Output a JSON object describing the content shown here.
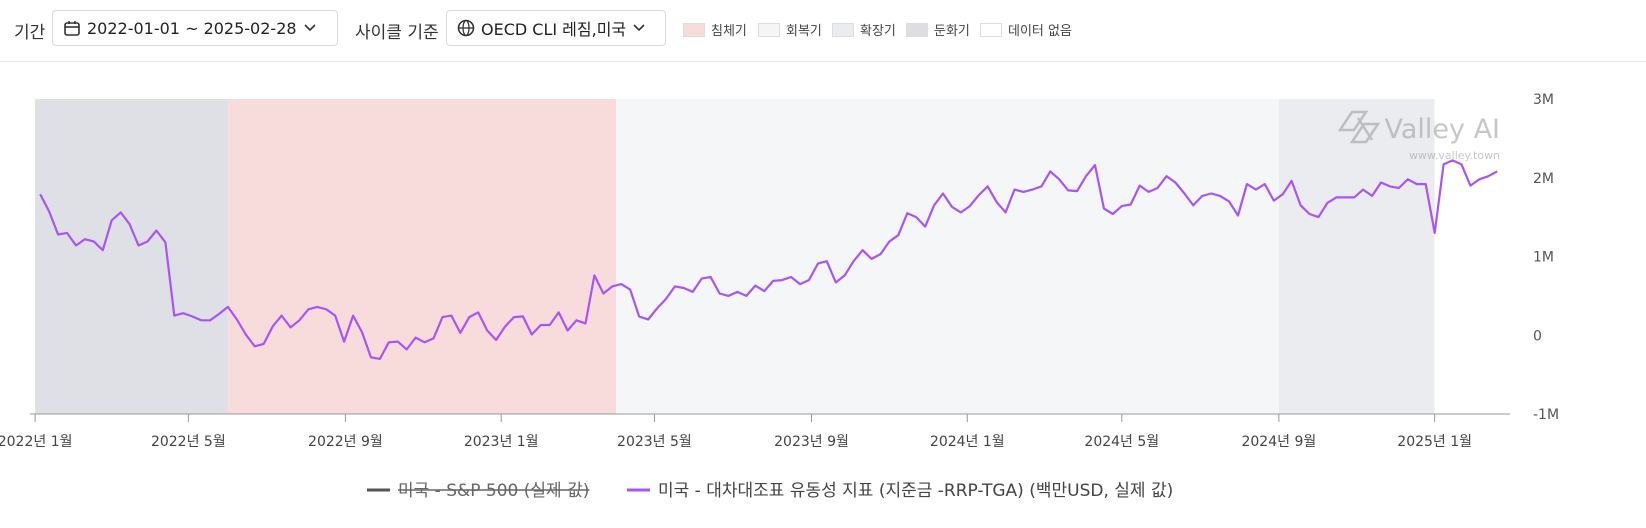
{
  "toolbar": {
    "period_label": "기간",
    "period": "2022-01-01 ~ 2025-02-28",
    "cycle_label": "사이클 기준",
    "cycle": "OECD CLI 레짐,미국",
    "regime_legend": [
      {
        "name": "침체기",
        "color": "#f8dcdc"
      },
      {
        "name": "회복기",
        "color": "#f4f5f7"
      },
      {
        "name": "확장기",
        "color": "#ebecef"
      },
      {
        "name": "둔화기",
        "color": "#dcdee4"
      },
      {
        "name": "데이터 없음",
        "color": "#ffffff"
      }
    ]
  },
  "chart_data": {
    "type": "line",
    "watermark": "Valley AI",
    "watermark_url": "www.valley.town",
    "x": [
      "2022-01-05",
      "2022-01-12",
      "2022-01-19",
      "2022-01-26",
      "2022-02-02",
      "2022-02-09",
      "2022-02-16",
      "2022-02-23",
      "2022-03-02",
      "2022-03-09",
      "2022-03-16",
      "2022-03-23",
      "2022-03-30",
      "2022-04-06",
      "2022-04-13",
      "2022-04-20",
      "2022-04-27",
      "2022-05-04",
      "2022-05-11",
      "2022-05-18",
      "2022-05-25",
      "2022-06-01",
      "2022-06-08",
      "2022-06-15",
      "2022-06-22",
      "2022-06-29",
      "2022-07-06",
      "2022-07-13",
      "2022-07-20",
      "2022-07-27",
      "2022-08-03",
      "2022-08-10",
      "2022-08-17",
      "2022-08-24",
      "2022-08-31",
      "2022-09-07",
      "2022-09-14",
      "2022-09-21",
      "2022-09-28",
      "2022-10-05",
      "2022-10-12",
      "2022-10-19",
      "2022-10-26",
      "2022-11-02",
      "2022-11-09",
      "2022-11-16",
      "2022-11-23",
      "2022-11-30",
      "2022-12-07",
      "2022-12-14",
      "2022-12-21",
      "2022-12-28",
      "2023-01-04",
      "2023-01-11",
      "2023-01-18",
      "2023-01-25",
      "2023-02-01",
      "2023-02-08",
      "2023-02-15",
      "2023-02-22",
      "2023-03-01",
      "2023-03-08",
      "2023-03-15",
      "2023-03-22",
      "2023-03-29",
      "2023-04-05",
      "2023-04-12",
      "2023-04-19",
      "2023-04-26",
      "2023-05-03",
      "2023-05-10",
      "2023-05-17",
      "2023-05-24",
      "2023-05-31",
      "2023-06-07",
      "2023-06-14",
      "2023-06-21",
      "2023-06-28",
      "2023-07-05",
      "2023-07-12",
      "2023-07-19",
      "2023-07-26",
      "2023-08-02",
      "2023-08-09",
      "2023-08-16",
      "2023-08-23",
      "2023-08-30",
      "2023-09-06",
      "2023-09-13",
      "2023-09-20",
      "2023-09-27",
      "2023-10-04",
      "2023-10-11",
      "2023-10-18",
      "2023-10-25",
      "2023-11-01",
      "2023-11-08",
      "2023-11-15",
      "2023-11-22",
      "2023-11-29",
      "2023-12-06",
      "2023-12-13",
      "2023-12-20",
      "2023-12-27",
      "2024-01-03",
      "2024-01-10",
      "2024-01-17",
      "2024-01-24",
      "2024-01-31",
      "2024-02-07",
      "2024-02-14",
      "2024-02-21",
      "2024-02-28",
      "2024-03-06",
      "2024-03-13",
      "2024-03-20",
      "2024-03-27",
      "2024-04-03",
      "2024-04-10",
      "2024-04-17",
      "2024-04-24",
      "2024-05-01",
      "2024-05-08",
      "2024-05-15",
      "2024-05-22",
      "2024-05-29",
      "2024-06-05",
      "2024-06-12",
      "2024-06-19",
      "2024-06-26",
      "2024-07-03",
      "2024-07-10",
      "2024-07-17",
      "2024-07-24",
      "2024-07-31",
      "2024-08-07",
      "2024-08-14",
      "2024-08-21",
      "2024-08-28",
      "2024-09-04",
      "2024-09-11",
      "2024-09-18",
      "2024-09-25",
      "2024-10-02",
      "2024-10-09",
      "2024-10-16",
      "2024-10-23",
      "2024-10-30",
      "2024-11-06",
      "2024-11-13",
      "2024-11-20",
      "2024-11-27",
      "2024-12-04",
      "2024-12-11",
      "2024-12-18",
      "2024-12-25",
      "2025-01-01",
      "2025-01-08",
      "2025-01-15",
      "2025-01-22",
      "2025-01-29",
      "2025-02-05",
      "2025-02-12",
      "2025-02-19"
    ],
    "xlim": [
      "2021-12-28",
      "2025-03-01"
    ],
    "xticks": [
      {
        "value": "2022-01-01",
        "label": "2022년 1월"
      },
      {
        "value": "2022-05-01",
        "label": "2022년 5월"
      },
      {
        "value": "2022-09-01",
        "label": "2022년 9월"
      },
      {
        "value": "2023-01-01",
        "label": "2023년 1월"
      },
      {
        "value": "2023-05-01",
        "label": "2023년 5월"
      },
      {
        "value": "2023-09-01",
        "label": "2023년 9월"
      },
      {
        "value": "2024-01-01",
        "label": "2024년 1월"
      },
      {
        "value": "2024-05-01",
        "label": "2024년 5월"
      },
      {
        "value": "2024-09-01",
        "label": "2024년 9월"
      },
      {
        "value": "2025-01-01",
        "label": "2025년 1월"
      }
    ],
    "ylim": [
      -1000000,
      3000000
    ],
    "yticks": [
      {
        "value": -1000000,
        "label": "-1M"
      },
      0,
      {
        "value": 1000000,
        "label": "1M"
      },
      {
        "value": 2000000,
        "label": "2M"
      },
      {
        "value": 3000000,
        "label": "3M"
      }
    ],
    "regimes": [
      {
        "start": "2022-01-01",
        "end": "2022-06-01",
        "color": "#dfe0e6"
      },
      {
        "start": "2022-06-01",
        "end": "2023-04-01",
        "color": "#f8dcdc"
      },
      {
        "start": "2023-04-01",
        "end": "2024-09-01",
        "color": "#f5f6f8"
      },
      {
        "start": "2024-09-01",
        "end": "2025-01-01",
        "color": "#ebecef"
      }
    ],
    "series": [
      {
        "name": "미국 - S&P 500 (실제 값)",
        "color": "#555555",
        "hidden": true
      },
      {
        "name": "미국 - 대차대조표 유동성 지표 (지준금 -RRP-TGA) (백만USD, 실제 값)",
        "color": "#a855f7",
        "values": [
          1790000,
          1570000,
          1280000,
          1300000,
          1140000,
          1220000,
          1190000,
          1080000,
          1460000,
          1560000,
          1410000,
          1140000,
          1190000,
          1330000,
          1180000,
          250000,
          280000,
          240000,
          190000,
          190000,
          270000,
          360000,
          200000,
          10000,
          -140000,
          -110000,
          110000,
          250000,
          100000,
          190000,
          330000,
          360000,
          330000,
          250000,
          -80000,
          250000,
          40000,
          -280000,
          -300000,
          -90000,
          -80000,
          -180000,
          -30000,
          -90000,
          -40000,
          230000,
          250000,
          30000,
          230000,
          290000,
          60000,
          -60000,
          110000,
          230000,
          240000,
          10000,
          130000,
          130000,
          290000,
          60000,
          190000,
          150000,
          760000,
          530000,
          620000,
          650000,
          580000,
          240000,
          200000,
          340000,
          460000,
          620000,
          600000,
          550000,
          720000,
          740000,
          530000,
          500000,
          550000,
          500000,
          630000,
          560000,
          690000,
          700000,
          740000,
          650000,
          700000,
          910000,
          940000,
          670000,
          760000,
          940000,
          1080000,
          970000,
          1030000,
          1190000,
          1270000,
          1550000,
          1500000,
          1380000,
          1650000,
          1800000,
          1630000,
          1560000,
          1640000,
          1780000,
          1890000,
          1690000,
          1560000,
          1850000,
          1820000,
          1850000,
          1890000,
          2080000,
          1980000,
          1840000,
          1830000,
          2020000,
          2160000,
          1610000,
          1540000,
          1640000,
          1660000,
          1900000,
          1820000,
          1870000,
          2020000,
          1940000,
          1800000,
          1650000,
          1770000,
          1800000,
          1770000,
          1700000,
          1520000,
          1920000,
          1850000,
          1920000,
          1710000,
          1790000,
          1960000,
          1650000,
          1540000,
          1500000,
          1680000,
          1750000,
          1750000,
          1750000,
          1850000,
          1770000,
          1940000,
          1890000,
          1870000,
          1980000,
          1920000,
          1920000,
          1300000,
          2170000,
          2220000,
          2170000,
          1900000,
          1980000,
          2020000,
          2080000
        ]
      }
    ]
  }
}
